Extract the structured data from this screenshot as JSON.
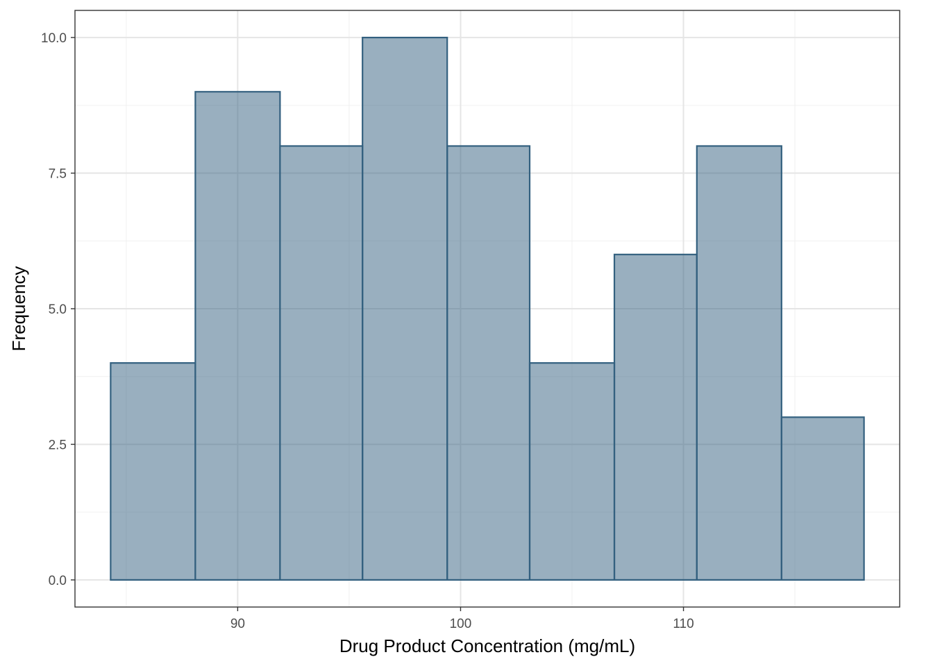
{
  "chart_data": {
    "type": "bar",
    "subtype": "histogram",
    "title": "",
    "xlabel": "Drug Product Concentration (mg/mL)",
    "ylabel": "Frequency",
    "bins": [
      {
        "x0": 84.3,
        "x1": 88.1,
        "count": 4
      },
      {
        "x0": 88.1,
        "x1": 91.9,
        "count": 9
      },
      {
        "x0": 91.9,
        "x1": 95.6,
        "count": 8
      },
      {
        "x0": 95.6,
        "x1": 99.4,
        "count": 10
      },
      {
        "x0": 99.4,
        "x1": 103.1,
        "count": 8
      },
      {
        "x0": 103.1,
        "x1": 106.9,
        "count": 4
      },
      {
        "x0": 106.9,
        "x1": 110.6,
        "count": 6
      },
      {
        "x0": 110.6,
        "x1": 114.4,
        "count": 8
      },
      {
        "x0": 114.4,
        "x1": 118.1,
        "count": 3
      }
    ],
    "xlim": [
      82.7,
      119.7
    ],
    "ylim": [
      -0.5,
      10.5
    ],
    "xticks": [
      90,
      100,
      110
    ],
    "xtick_labels": [
      "90",
      "100",
      "110"
    ],
    "yticks": [
      0,
      2.5,
      5,
      7.5,
      10
    ],
    "ytick_labels": [
      "0.0",
      "2.5",
      "5.0",
      "7.5",
      "10.0"
    ],
    "x_minor_ticks": [
      85,
      95,
      105,
      115
    ],
    "y_minor_ticks": [
      1.25,
      3.75,
      6.25,
      8.75
    ],
    "grid": true,
    "legend": "none",
    "colors": {
      "bar_fill": "#33607f",
      "bar_fill_opacity": 0.5,
      "bar_stroke": "#33607f",
      "grid_major": "#e5e5e5",
      "grid_minor": "#f0f0f0",
      "panel_border": "#333333"
    }
  }
}
